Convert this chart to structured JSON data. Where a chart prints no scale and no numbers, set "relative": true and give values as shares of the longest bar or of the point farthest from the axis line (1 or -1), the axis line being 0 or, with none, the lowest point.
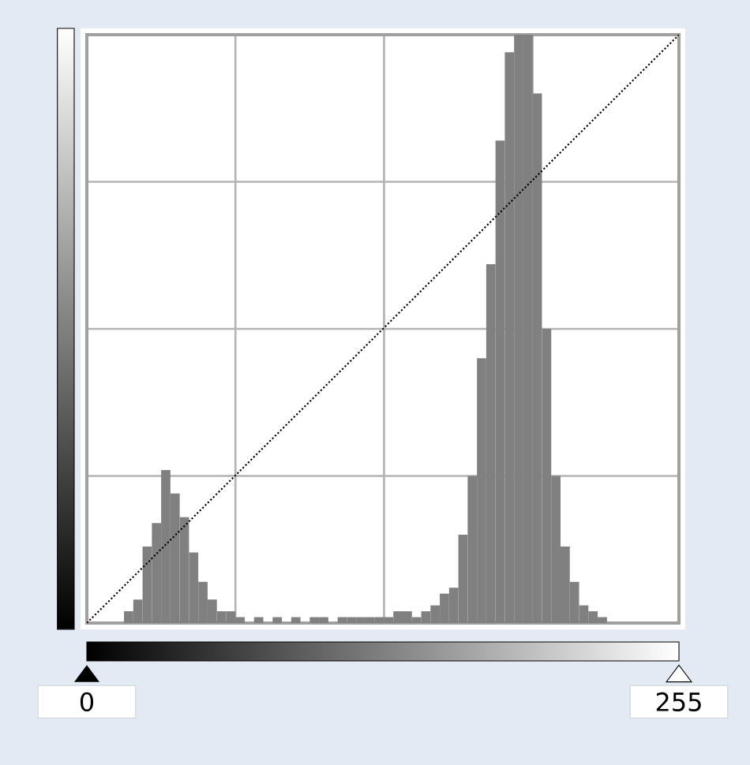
{
  "chart_data": {
    "type": "histogram",
    "relative": true,
    "xlim": [
      0,
      255
    ],
    "xticks": [
      0,
      {
        "value": 64,
        "label": null
      },
      {
        "value": 128,
        "label": null
      },
      {
        "value": 192,
        "label": null
      },
      255
    ],
    "grid": true,
    "series": [
      {
        "color": "#808080",
        "bins": [
          16,
          20,
          24,
          28,
          32,
          36,
          40,
          44,
          48,
          52,
          56,
          60,
          64,
          68,
          72,
          76,
          80,
          84,
          88,
          92,
          96,
          100,
          104,
          108,
          112,
          116,
          120,
          124,
          128,
          132,
          136,
          140,
          144,
          148,
          152,
          156,
          160,
          164,
          168,
          172,
          176,
          180,
          184,
          188,
          192,
          196,
          200,
          204,
          208,
          212,
          216,
          220,
          224
        ],
        "values": [
          0.02,
          0.04,
          0.13,
          0.17,
          0.26,
          0.22,
          0.18,
          0.12,
          0.07,
          0.04,
          0.02,
          0.02,
          0.01,
          0,
          0.01,
          0,
          0.01,
          0,
          0.01,
          0,
          0.01,
          0.01,
          0,
          0.01,
          0.01,
          0.01,
          0.01,
          0.01,
          0.01,
          0.02,
          0.02,
          0.01,
          0.02,
          0.03,
          0.05,
          0.06,
          0.15,
          0.25,
          0.45,
          0.61,
          0.82,
          0.97,
          1,
          1,
          0.9,
          0.5,
          0.25,
          0.13,
          0.07,
          0.03,
          0.02,
          0.01
        ]
      },
      {
        "type": "line",
        "color": "#000000",
        "line_style": "dotted",
        "x": [
          0,
          255
        ],
        "values": [
          0,
          1
        ]
      }
    ]
  }
}
